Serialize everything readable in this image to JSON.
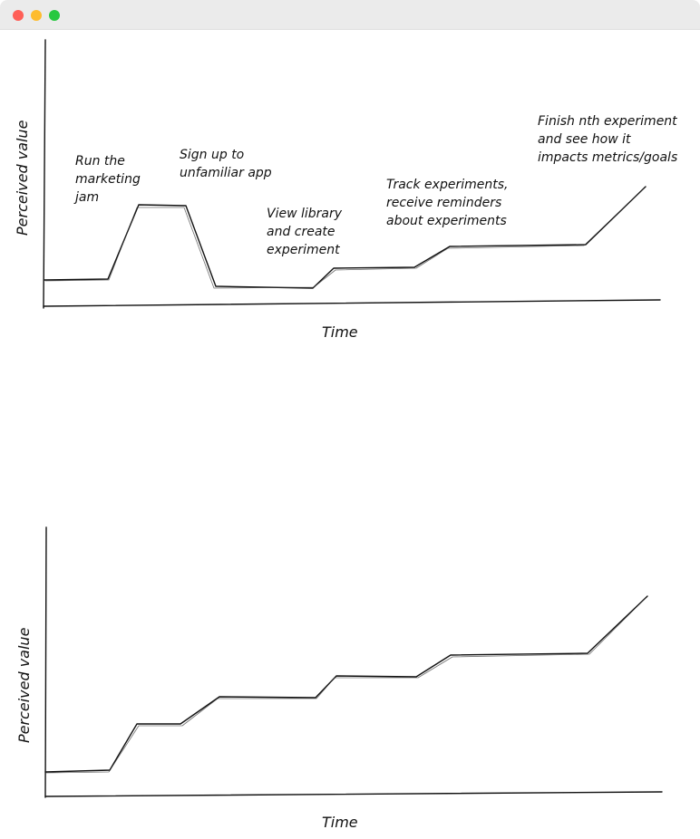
{
  "window": {
    "controls": [
      "close",
      "minimize",
      "zoom"
    ]
  },
  "diagrams": [
    {
      "ylabel": "Perceived value",
      "xlabel": "Time",
      "annotations": [
        {
          "lines": [
            "Run the",
            "marketing",
            "jam"
          ]
        },
        {
          "lines": [
            "Sign up to",
            "unfamiliar app"
          ]
        },
        {
          "lines": [
            "View library",
            "and create",
            "experiment"
          ]
        },
        {
          "lines": [
            "Track experiments,",
            "receive reminders",
            "about experiments"
          ]
        },
        {
          "lines": [
            "Finish nth experiment",
            "and see how it",
            "impacts metrics/goals"
          ]
        }
      ]
    },
    {
      "ylabel": "Perceived value",
      "xlabel": "Time"
    }
  ],
  "colors": {
    "ink": "#111111",
    "titlebar": "#ebebeb",
    "close": "#ff5f57",
    "minimize": "#febc2e",
    "zoom": "#28c840"
  }
}
